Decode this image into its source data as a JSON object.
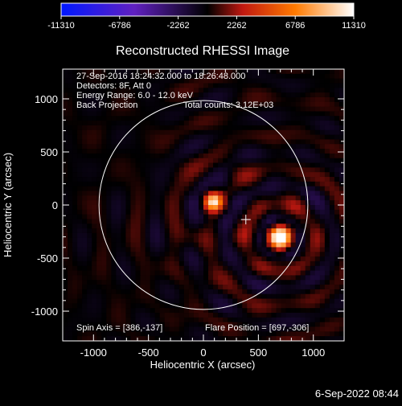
{
  "chart_data": {
    "type": "heatmap",
    "title": "Reconstructed RHESSI Image",
    "xlabel": "Heliocentric X (arcsec)",
    "ylabel": "Heliocentric Y (arcsec)",
    "xlim": [
      -1280,
      1280
    ],
    "ylim": [
      -1280,
      1280
    ],
    "x_ticks": [
      "-1000",
      "-500",
      "0",
      "500",
      "1000"
    ],
    "x_tick_values": [
      -1000,
      -500,
      0,
      500,
      1000
    ],
    "y_ticks": [
      "1000",
      "500",
      "0",
      "-500",
      "-1000"
    ],
    "y_tick_values": [
      1000,
      500,
      0,
      -500,
      -1000
    ],
    "colorbar": {
      "tick_labels": [
        "-11310",
        "-6786",
        "-2262",
        "2262",
        "6786",
        "11310"
      ],
      "min": -11310,
      "max": 11310,
      "colors": [
        "#0018ff",
        "#6020c0",
        "#000000",
        "#c01810",
        "#ff7a00",
        "#ffffff"
      ]
    },
    "annotations": {
      "time_range": "27-Sep-2016 18:24:32.000 to 18:26:48.000",
      "detectors": "Detectors: 8F, Att 0",
      "energy": "Energy Range: 6.0 - 12.0 keV",
      "method": "Back Projection",
      "total_counts": "Total counts: 3.12E+03",
      "spin_axis": "Spin Axis = [386,-137]",
      "flare_position": "Flare Position = [697,-306]"
    },
    "sources": [
      {
        "x": 697,
        "y": -306,
        "intensity": 11310
      },
      {
        "x": 90,
        "y": 30,
        "intensity": 7400
      }
    ],
    "spin_axis": {
      "x": 386,
      "y": -137
    },
    "solar_disk_radius": 950,
    "grid": false
  },
  "footer": {
    "date": "6-Sep-2022 08:44"
  }
}
